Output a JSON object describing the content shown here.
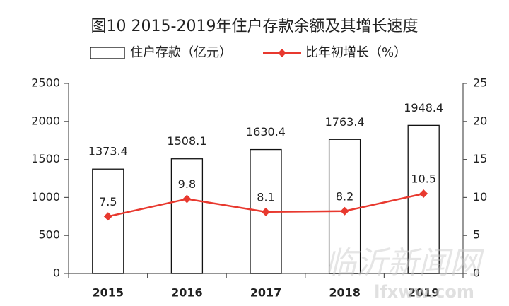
{
  "chart_data": {
    "type": "bar",
    "title": "图10 2015-2019年住户存款余额及其增长速度",
    "categories": [
      "2015",
      "2016",
      "2017",
      "2018",
      "2019"
    ],
    "series": [
      {
        "name": "住户存款（亿元）",
        "type": "bar",
        "color": "#ffffff",
        "values": [
          1373.4,
          1508.1,
          1630.4,
          1763.4,
          1948.4
        ]
      },
      {
        "name": "比年初增长（%）",
        "type": "line",
        "color": "#e8392f",
        "axis": "y2",
        "values": [
          7.5,
          9.8,
          8.1,
          8.2,
          10.5
        ]
      }
    ],
    "ylim": [
      0,
      2500
    ],
    "yticks": [
      0,
      500,
      1000,
      1500,
      2000,
      2500
    ],
    "y2lim": [
      0,
      25
    ],
    "y2ticks": [
      0,
      5,
      10,
      15,
      20,
      25
    ],
    "grid": false,
    "legend": "top",
    "watermark": [
      "临沂新闻网",
      "lfxww.com"
    ]
  }
}
